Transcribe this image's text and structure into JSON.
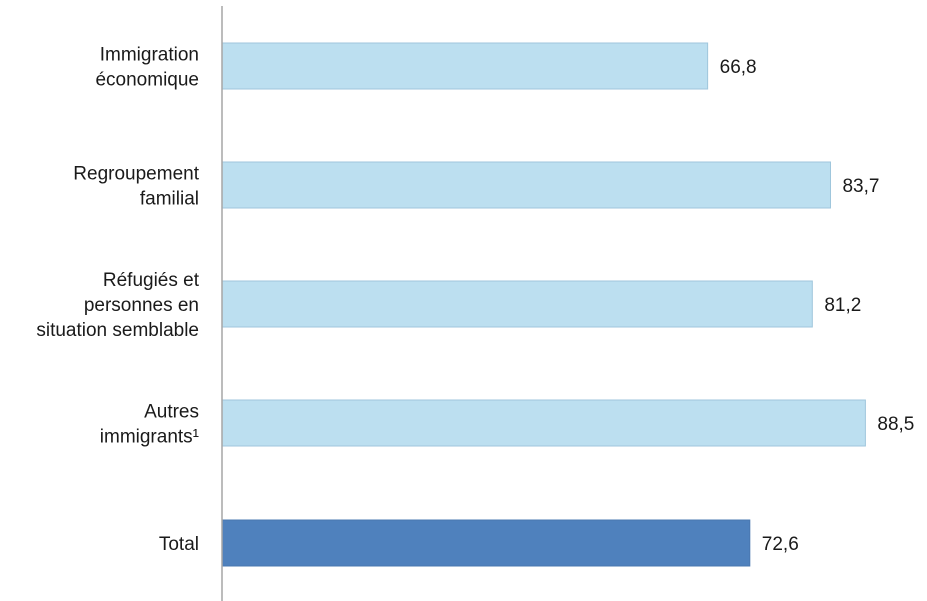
{
  "chart_data": {
    "type": "bar",
    "orientation": "horizontal",
    "categories": [
      [
        "Immigration",
        "économique"
      ],
      [
        "Regroupement",
        "familial"
      ],
      [
        "Réfugiés et",
        "personnes en",
        "situation semblable"
      ],
      [
        "Autres",
        "immigrants¹"
      ],
      [
        "Total"
      ]
    ],
    "values": [
      66.8,
      83.7,
      81.2,
      88.5,
      72.6
    ],
    "value_labels": [
      "66,8",
      "83,7",
      "81,2",
      "88,5",
      "72,6"
    ],
    "bar_colors": [
      "#bcdff0",
      "#bcdff0",
      "#bcdff0",
      "#bcdff0",
      "#4f81bd"
    ],
    "bar_stroke_colors": [
      "#9fc6dc",
      "#9fc6dc",
      "#9fc6dc",
      "#9fc6dc",
      "#4a78b0"
    ],
    "axis_color": "#a6a6a6",
    "title": "",
    "xlabel": "",
    "ylabel": "",
    "xlim": [
      0,
      100
    ],
    "grid": false,
    "legend": "none"
  }
}
